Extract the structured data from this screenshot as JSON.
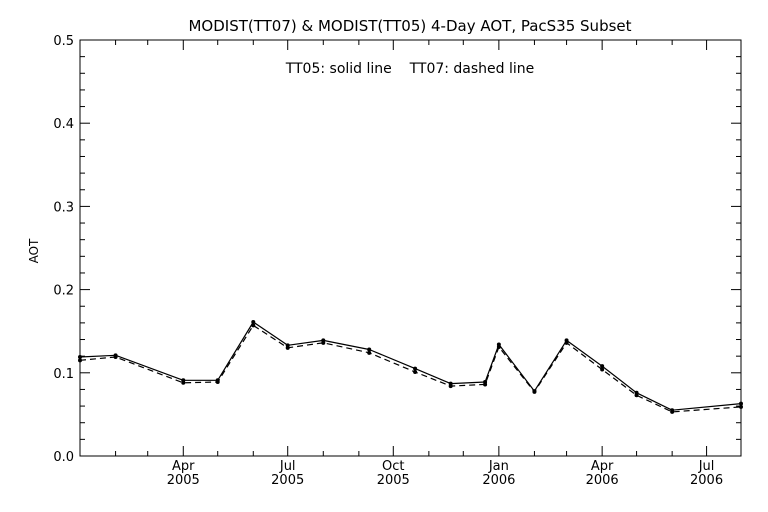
{
  "chart_data": {
    "type": "line",
    "title": "MODIST(TT07) & MODIST(TT05) 4-Day AOT, PacS35 Subset",
    "annotation": "TT05: solid line    TT07: dashed line",
    "ylabel": "AOT",
    "xlabel": "",
    "ylim": [
      0.0,
      0.5
    ],
    "yticks": [
      "0.0",
      "0.1",
      "0.2",
      "0.3",
      "0.4",
      "0.5"
    ],
    "x_range": [
      "2005-01-01",
      "2006-07-31"
    ],
    "x_ticks": [
      {
        "date": "2005-04-01",
        "month": "Apr",
        "year": "2005"
      },
      {
        "date": "2005-07-01",
        "month": "Jul",
        "year": "2005"
      },
      {
        "date": "2005-10-01",
        "month": "Oct",
        "year": "2005"
      },
      {
        "date": "2006-01-01",
        "month": "Jan",
        "year": "2006"
      },
      {
        "date": "2006-04-01",
        "month": "Apr",
        "year": "2006"
      },
      {
        "date": "2006-07-01",
        "month": "Jul",
        "year": "2006"
      }
    ],
    "grid": false,
    "legend": "none",
    "series": [
      {
        "name": "TT05",
        "style": "solid",
        "color": "#000000",
        "points": [
          [
            "2005-01-01",
            0.119
          ],
          [
            "2005-02-01",
            0.121
          ],
          [
            "2005-04-01",
            0.091
          ],
          [
            "2005-05-01",
            0.091
          ],
          [
            "2005-06-01",
            0.161
          ],
          [
            "2005-07-01",
            0.133
          ],
          [
            "2005-08-01",
            0.139
          ],
          [
            "2005-09-10",
            0.128
          ],
          [
            "2005-10-20",
            0.105
          ],
          [
            "2005-11-20",
            0.087
          ],
          [
            "2005-12-20",
            0.089
          ],
          [
            "2006-01-01",
            0.134
          ],
          [
            "2006-02-01",
            0.078
          ],
          [
            "2006-03-01",
            0.139
          ],
          [
            "2006-04-01",
            0.108
          ],
          [
            "2006-05-01",
            0.076
          ],
          [
            "2006-06-01",
            0.055
          ],
          [
            "2006-07-31",
            0.063
          ]
        ]
      },
      {
        "name": "TT07",
        "style": "dashed",
        "color": "#000000",
        "points": [
          [
            "2005-01-01",
            0.115
          ],
          [
            "2005-02-01",
            0.119
          ],
          [
            "2005-04-01",
            0.088
          ],
          [
            "2005-05-01",
            0.089
          ],
          [
            "2005-06-01",
            0.157
          ],
          [
            "2005-07-01",
            0.13
          ],
          [
            "2005-08-01",
            0.136
          ],
          [
            "2005-09-10",
            0.124
          ],
          [
            "2005-10-20",
            0.101
          ],
          [
            "2005-11-20",
            0.084
          ],
          [
            "2005-12-20",
            0.086
          ],
          [
            "2006-01-01",
            0.131
          ],
          [
            "2006-02-01",
            0.077
          ],
          [
            "2006-03-01",
            0.136
          ],
          [
            "2006-04-01",
            0.104
          ],
          [
            "2006-05-01",
            0.073
          ],
          [
            "2006-06-01",
            0.053
          ],
          [
            "2006-07-31",
            0.059
          ]
        ]
      }
    ]
  }
}
